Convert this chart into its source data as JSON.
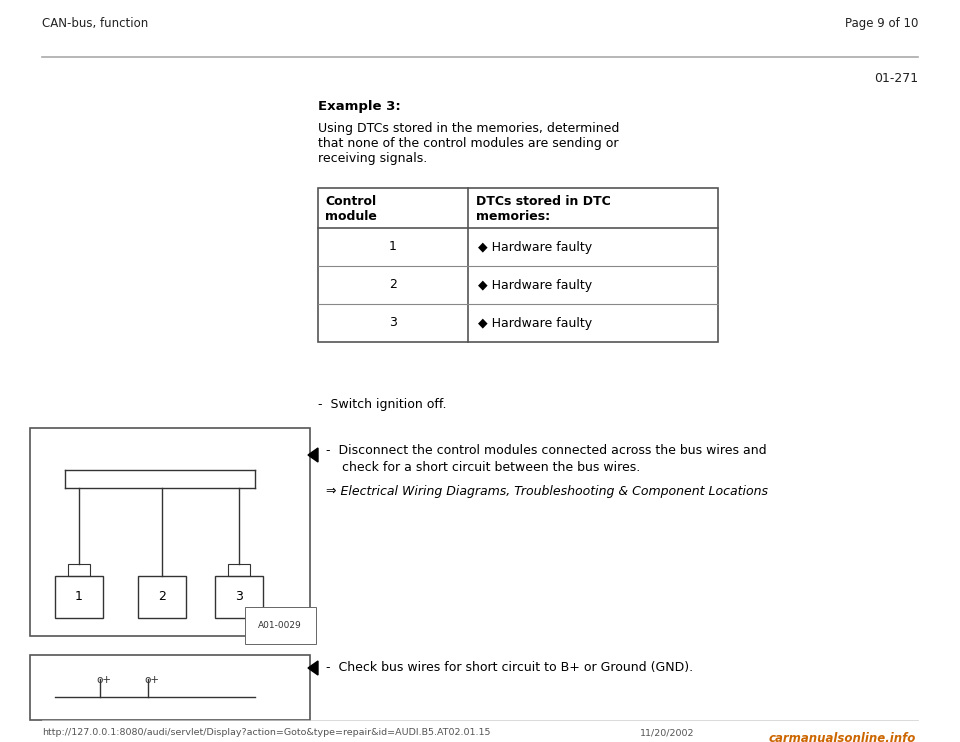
{
  "page_title_left": "CAN-bus, function",
  "page_title_right": "Page 9 of 10",
  "page_number": "01-271",
  "example_title": "Example 3:",
  "intro_text": "Using DTCs stored in the memories, determined\nthat none of the control modules are sending or\nreceiving signals.",
  "table_header_col1": "Control\nmodule",
  "table_header_col2": "DTCs stored in DTC\nmemories:",
  "table_rows": [
    {
      "module": "1",
      "dtc": "◆ Hardware faulty"
    },
    {
      "module": "2",
      "dtc": "◆ Hardware faulty"
    },
    {
      "module": "3",
      "dtc": "◆ Hardware faulty"
    }
  ],
  "bullet1": "-  Switch ignition off.",
  "bullet2_line1": "-  Disconnect the control modules connected across the bus wires and",
  "bullet2_line2": "    check for a short circuit between the bus wires.",
  "arrow_ref": "⇒ Electrical Wiring Diagrams, Troubleshooting & Component Locations",
  "bullet3": "-  Check bus wires for short circuit to B+ or Ground (GND).",
  "diagram_label": "A01-0029",
  "footer_url": "http://127.0.0.1:8080/audi/servlet/Display?action=Goto&type=repair&id=AUDI.B5.AT02.01.15",
  "footer_date": "11/20/2002",
  "footer_logo": "carmanualsonline.info",
  "bg_color": "#ffffff",
  "text_color": "#000000",
  "header_line_color": "#aaaaaa",
  "border_color": "#555555",
  "diagram_color": "#333333"
}
